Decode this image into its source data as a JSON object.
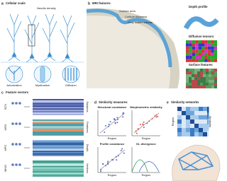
{
  "panel_a": {
    "letter": "a",
    "title": "Cellular scale",
    "top_label": "Neurite density",
    "insets": [
      "Arborization",
      "Myelination",
      "Diffusion"
    ]
  },
  "panel_b": {
    "letter": "b",
    "title": "MRI features",
    "callouts": [
      "Surface area",
      "Cortical thickness",
      "Grey matter volume"
    ],
    "side_titles": [
      "Depth profile",
      "Diffusion tensors",
      "Surface features"
    ]
  },
  "panel_c": {
    "letter": "c",
    "title": "Feature vectors",
    "rows": [
      {
        "name": "SCN",
        "axis": "Subjects"
      },
      {
        "name": "MSN",
        "axis": "Features"
      },
      {
        "name": "MPC",
        "axis": "Depth"
      },
      {
        "name": "MIND",
        "axis": "Vertices"
      }
    ]
  },
  "panel_d": {
    "letter": "d",
    "title": "Similarity measures",
    "plots": [
      "Structural covariance",
      "Morphometric similarity",
      "Profile covariance",
      "KL divergence"
    ],
    "axis_label": "Region"
  },
  "panel_e": {
    "letter": "e",
    "title": "Similarity networks",
    "axis_label": "Region",
    "legend_label": "Similarity"
  }
}
